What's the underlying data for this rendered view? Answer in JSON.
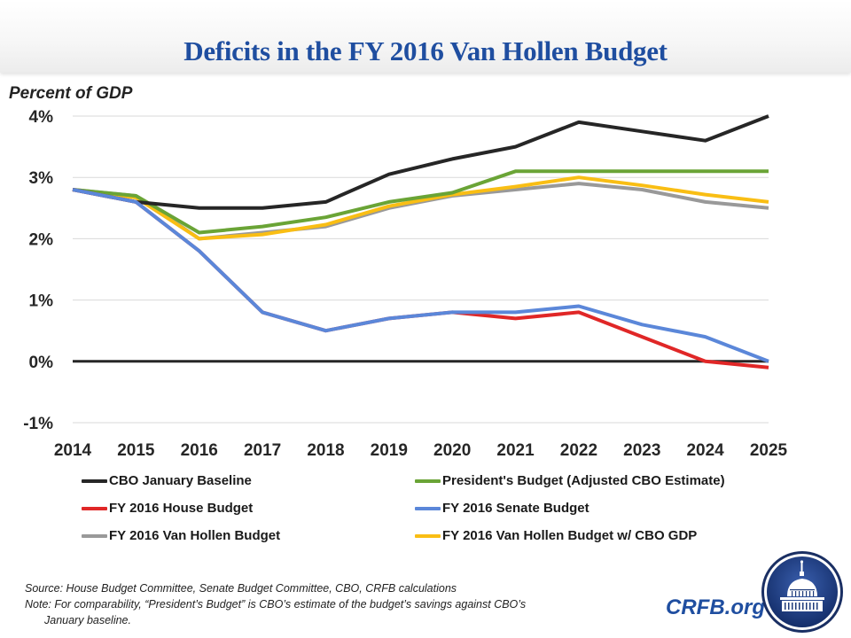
{
  "header": {
    "title": "Deficits in the FY 2016 Van Hollen Budget"
  },
  "chart_data": {
    "type": "line",
    "title": "Deficits in the FY 2016 Van Hollen Budget",
    "xlabel": "",
    "ylabel": "Percent of GDP",
    "x": [
      2014,
      2015,
      2016,
      2017,
      2018,
      2019,
      2020,
      2021,
      2022,
      2023,
      2024,
      2025
    ],
    "x_tick_labels": [
      "2014",
      "2015",
      "2016",
      "2017",
      "2018",
      "2019",
      "2020",
      "2021",
      "2022",
      "2023",
      "2024",
      "2025"
    ],
    "ylim": [
      -1,
      4
    ],
    "y_ticks": [
      4,
      3,
      2,
      1,
      0,
      -1
    ],
    "y_tick_labels": [
      "4%",
      "3%",
      "2%",
      "1%",
      "0%",
      "-1%"
    ],
    "grid": true,
    "legend_position": "bottom",
    "series": [
      {
        "name": "CBO January Baseline",
        "color": "#262626",
        "values": [
          2.8,
          2.6,
          2.5,
          2.5,
          2.6,
          3.05,
          3.3,
          3.5,
          3.9,
          3.75,
          3.6,
          4.0
        ]
      },
      {
        "name": "President's Budget (Adjusted CBO Estimate)",
        "color": "#6aa436",
        "values": [
          2.8,
          2.7,
          2.1,
          2.2,
          2.35,
          2.6,
          2.75,
          3.1,
          3.1,
          3.1,
          3.1,
          3.1
        ]
      },
      {
        "name": "FY 2016 House Budget",
        "color": "#e02727",
        "values": [
          2.8,
          2.6,
          1.8,
          0.8,
          0.5,
          0.7,
          0.8,
          0.7,
          0.8,
          0.4,
          0.0,
          -0.1
        ]
      },
      {
        "name": "FY 2016 Senate Budget",
        "color": "#5b87d9",
        "values": [
          2.8,
          2.6,
          1.8,
          0.8,
          0.5,
          0.7,
          0.8,
          0.8,
          0.9,
          0.6,
          0.4,
          0.0
        ]
      },
      {
        "name": "FY 2016 Van Hollen Budget",
        "color": "#999999",
        "values": [
          2.8,
          2.7,
          2.0,
          2.1,
          2.2,
          2.5,
          2.7,
          2.8,
          2.9,
          2.8,
          2.6,
          2.5
        ]
      },
      {
        "name": "FY 2016 Van Hollen Budget w/ CBO GDP",
        "color": "#f9be14",
        "values": [
          2.8,
          2.67,
          2.0,
          2.07,
          2.23,
          2.53,
          2.72,
          2.85,
          3.0,
          2.87,
          2.72,
          2.6
        ]
      }
    ],
    "zero_line": true
  },
  "legend": {
    "items": [
      {
        "label": "CBO January Baseline",
        "color": "#262626"
      },
      {
        "label": "President's Budget (Adjusted CBO Estimate)",
        "color": "#6aa436"
      },
      {
        "label": "FY 2016 House Budget",
        "color": "#e02727"
      },
      {
        "label": "FY 2016 Senate Budget",
        "color": "#5b87d9"
      },
      {
        "label": "FY 2016 Van Hollen Budget",
        "color": "#999999"
      },
      {
        "label": "FY 2016 Van Hollen Budget w/ CBO GDP",
        "color": "#f9be14"
      }
    ]
  },
  "footer": {
    "source": "Source: House Budget Committee, Senate Budget Committee, CBO, CRFB calculations",
    "note_line1": "Note: For comparability, “President’s Budget” is CBO’s estimate of the budget’s savings against CBO’s",
    "note_line2": "January baseline.",
    "brand": "CRFB.org"
  },
  "colors": {
    "title": "#1f4ea0",
    "brand": "#1f4ea0",
    "logo_bg": "#1d3a7a"
  }
}
